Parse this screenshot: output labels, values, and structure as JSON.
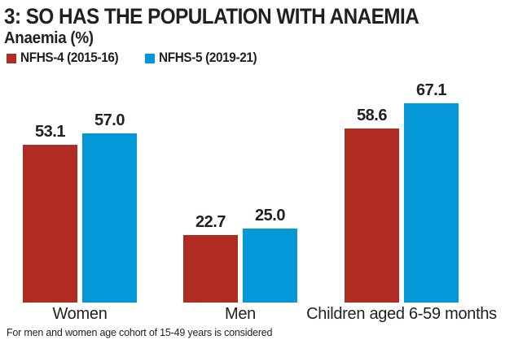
{
  "header": {
    "title": "3: SO HAS THE POPULATION WITH ANAEMIA",
    "subtitle": "Anaemia (%)"
  },
  "legend": {
    "items": [
      {
        "label": "NFHS-4 (2015-16)",
        "color": "#b02c22"
      },
      {
        "label": "NFHS-5 (2019-21)",
        "color": "#0598d8"
      }
    ]
  },
  "footnote": "For men and women age cohort of 15-49 years is considered",
  "colors": {
    "nfhs4_red": "#b02c22",
    "nfhs5_blue": "#0598d8",
    "text": "#231f20",
    "background": "#ffffff"
  },
  "chart_data": {
    "type": "bar",
    "title": "3: SO HAS THE POPULATION WITH ANAEMIA",
    "subtitle": "Anaemia (%)",
    "categories": [
      "Women",
      "Men",
      "Children aged 6-59 months"
    ],
    "series": [
      {
        "name": "NFHS-4 (2015-16)",
        "color": "#b02c22",
        "values": [
          53.1,
          22.7,
          58.6
        ]
      },
      {
        "name": "NFHS-5 (2019-21)",
        "color": "#0598d8",
        "values": [
          57.0,
          25.0,
          67.1
        ]
      }
    ],
    "xlabel": "",
    "ylabel": "Anaemia (%)",
    "ylim": [
      0,
      70
    ],
    "grid": false,
    "axes_shown": false,
    "value_labels": true,
    "value_label_decimals": 1,
    "legend_position": "top-left",
    "footnote": "For men and women age cohort of 15-49 years is considered"
  }
}
